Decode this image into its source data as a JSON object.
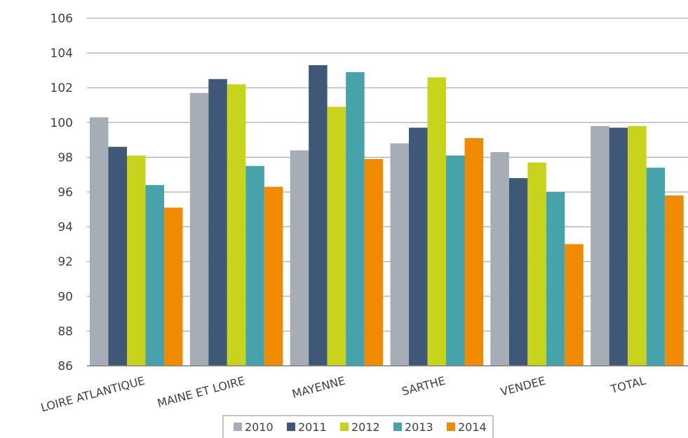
{
  "chart_data": {
    "type": "bar",
    "title": "",
    "xlabel": "",
    "ylabel": "",
    "ylim": [
      86,
      106
    ],
    "y_ticks": [
      "106",
      "104",
      "102",
      "100",
      "98",
      "96",
      "94",
      "92",
      "90",
      "88",
      "86"
    ],
    "grid": true,
    "legend_position": "bottom",
    "categories": [
      "LOIRE ATLANTIQUE",
      "MAINE ET LOIRE",
      "MAYENNE",
      "SARTHE",
      "VENDEE",
      "TOTAL"
    ],
    "series": [
      {
        "name": "2010",
        "color": "#a6adb7",
        "values": [
          100.3,
          101.7,
          98.4,
          98.8,
          98.3,
          99.8
        ]
      },
      {
        "name": "2011",
        "color": "#3f5878",
        "values": [
          98.6,
          102.5,
          103.3,
          99.7,
          96.8,
          99.7
        ]
      },
      {
        "name": "2012",
        "color": "#c8d41b",
        "values": [
          98.1,
          102.2,
          100.9,
          102.6,
          97.7,
          99.8
        ]
      },
      {
        "name": "2013",
        "color": "#46a3ab",
        "values": [
          96.4,
          97.5,
          102.9,
          98.1,
          96.0,
          97.4
        ]
      },
      {
        "name": "2014",
        "color": "#f08a00",
        "values": [
          95.1,
          96.3,
          97.9,
          99.1,
          93.0,
          95.8
        ]
      }
    ]
  }
}
